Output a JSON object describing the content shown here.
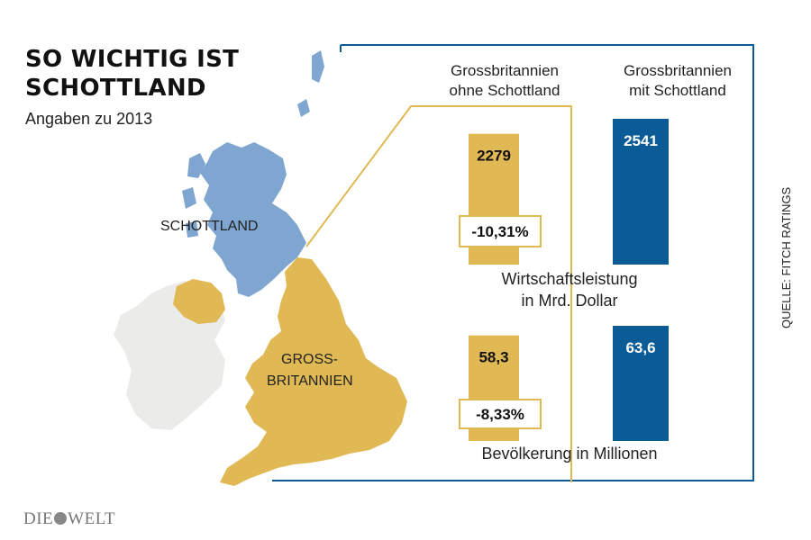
{
  "header": {
    "title": "SO WICHTIG IST\nSCHOTTLAND",
    "subtitle": "Angaben zu 2013"
  },
  "map": {
    "scotland_label": "SCHOTTLAND",
    "gb_label_line1": "GROSS-",
    "gb_label_line2": "BRITANNIEN"
  },
  "colors": {
    "scotland": "#7ea6d0",
    "rest_of_gb": "#e0b955",
    "ireland": "#ebebea",
    "with_scotland": "#0a5b96",
    "frame": "#0a5b96",
    "connector": "#e0b955"
  },
  "chart_data": [
    {
      "type": "bar",
      "title": "Wirtschaftsleistung in Mrd. Dollar",
      "title_lines": [
        "Wirtschaftsleistung",
        "in Mrd. Dollar"
      ],
      "categories": [
        "Grossbritannien ohne Schottland",
        "Grossbritannien mit Schottland"
      ],
      "values": [
        2279,
        2541
      ],
      "value_labels": [
        "2279",
        "2541"
      ],
      "change_label": "-10,31%"
    },
    {
      "type": "bar",
      "title": "Bevölkerung in Millionen",
      "title_lines": [
        "Bevölkerung in Millionen"
      ],
      "categories": [
        "Grossbritannien ohne Schottland",
        "Grossbritannien mit Schottland"
      ],
      "values": [
        58.3,
        63.6
      ],
      "value_labels": [
        "58,3",
        "63,6"
      ],
      "change_label": "-8,33%"
    }
  ],
  "column_headers": [
    [
      "Grossbritannien",
      "ohne Schottland"
    ],
    [
      "Grossbritannien",
      "mit Schottland"
    ]
  ],
  "source": "QUELLE: FITCH RATINGS",
  "logo": {
    "left": "DIE",
    "right": "WELT"
  }
}
